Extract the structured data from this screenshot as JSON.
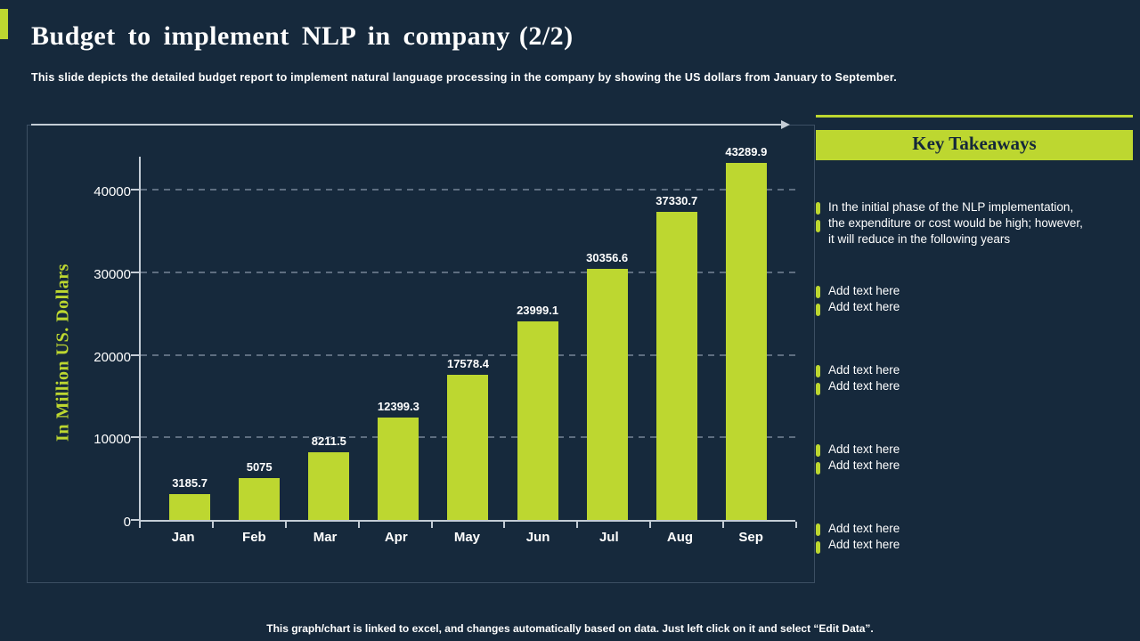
{
  "slide": {
    "title": "Budget to implement NLP in company",
    "title_suffix": "(2/2)",
    "subtitle": "This slide depicts the detailed budget report to implement natural language processing in the company by showing the US dollars from January to September.",
    "footer": "This graph/chart is linked to excel, and changes automatically based on data. Just left click on it and select “Edit Data”."
  },
  "colors": {
    "background": "#16293c",
    "accent": "#bdd730",
    "text": "#ffffff",
    "gridline": "#5e6e80",
    "axis": "#c4cdd6",
    "panel_border": "#3c4f63",
    "header_text_on_accent": "#14273a"
  },
  "chart_data": {
    "type": "bar",
    "categories": [
      "Jan",
      "Feb",
      "Mar",
      "Apr",
      "May",
      "Jun",
      "Jul",
      "Aug",
      "Sep"
    ],
    "values": [
      3185.7,
      5075,
      8211.5,
      12399.3,
      17578.4,
      23999.1,
      30356.6,
      37330.7,
      43289.9
    ],
    "value_labels": [
      "3185.7",
      "5075",
      "8211.5",
      "12399.3",
      "17578.4",
      "23999.1",
      "30356.6",
      "37330.7",
      "43289.9"
    ],
    "title": "",
    "xlabel": "",
    "ylabel": "In Million US. Dollars",
    "yticks": [
      0,
      10000,
      20000,
      30000,
      40000
    ],
    "ylim": [
      0,
      44000
    ],
    "grid": "horizontal-dashed",
    "legend": "none",
    "bar_color": "#bdd730"
  },
  "takeaways": {
    "title": "Key Takeaways",
    "items": [
      {
        "text": "In the initial phase of the NLP implementation,\nthe expenditure or cost would be high; however,\nit will reduce in the following years",
        "placeholder": false
      },
      {
        "text": "Add text here\nAdd text here",
        "placeholder": true
      },
      {
        "text": "Add text here\nAdd text here",
        "placeholder": true
      },
      {
        "text": "Add text here\nAdd text here",
        "placeholder": true
      },
      {
        "text": "Add text here\nAdd text here",
        "placeholder": true
      }
    ]
  }
}
